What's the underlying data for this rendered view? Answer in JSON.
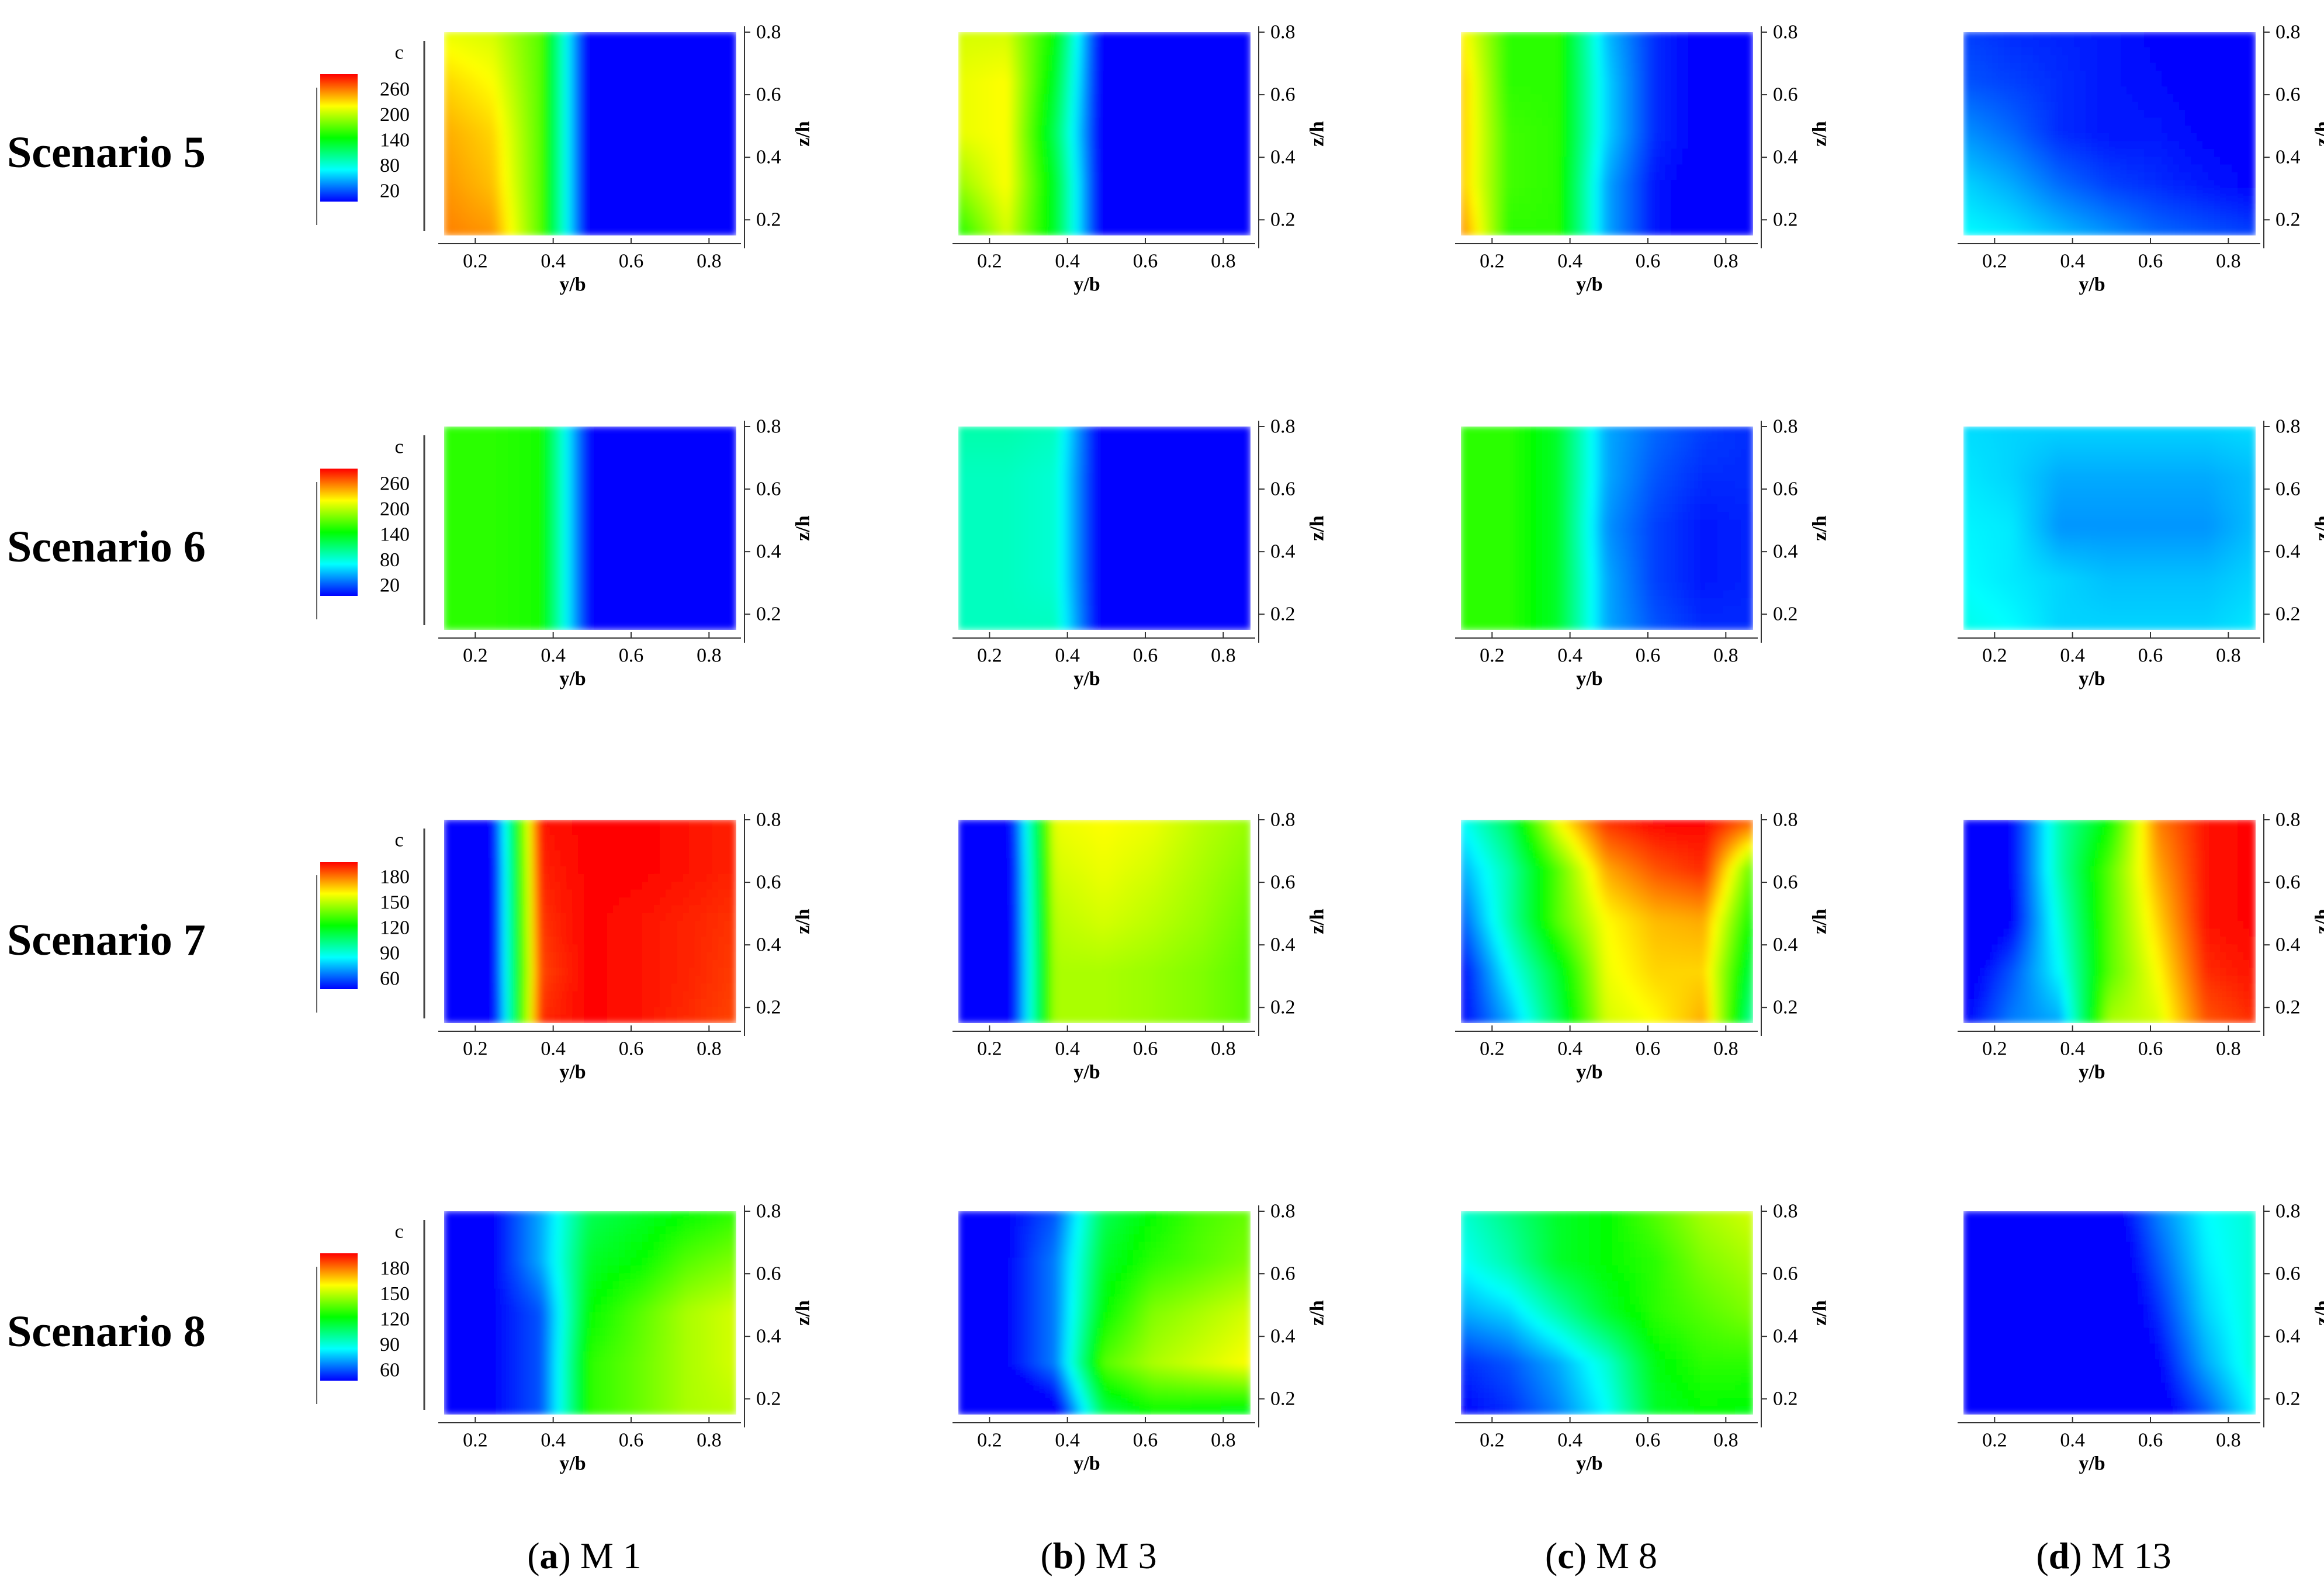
{
  "figure": {
    "row_labels": [
      "Scenario 5",
      "Scenario 6",
      "Scenario 7",
      "Scenario 8"
    ],
    "columns": [
      {
        "letter": "a",
        "rest": " M 1"
      },
      {
        "letter": "b",
        "rest": " M 3"
      },
      {
        "letter": "c",
        "rest": " M 8"
      },
      {
        "letter": "d",
        "rest": " M 13"
      }
    ],
    "legends": [
      {
        "title": "c",
        "ticks": [
          "260",
          "200",
          "140",
          "80",
          "20"
        ]
      },
      {
        "title": "c",
        "ticks": [
          "260",
          "200",
          "140",
          "80",
          "20"
        ]
      },
      {
        "title": "c",
        "ticks": [
          "180",
          "150",
          "120",
          "90",
          "60"
        ]
      },
      {
        "title": "c",
        "ticks": [
          "180",
          "150",
          "120",
          "90",
          "60"
        ]
      }
    ]
  },
  "chart_data": {
    "type": "heatmap",
    "xlabel": "y/b",
    "ylabel": "z/h",
    "colorbar_label": "c",
    "xticks": [
      0.2,
      0.4,
      0.6,
      0.8
    ],
    "yticks": [
      0.2,
      0.4,
      0.6,
      0.8
    ],
    "x": [
      0.12,
      0.25,
      0.38,
      0.5,
      0.62,
      0.75,
      0.87
    ],
    "y": [
      0.15,
      0.3,
      0.45,
      0.6,
      0.8
    ],
    "color_ranges": [
      {
        "scenario": "Scenario 5",
        "min": 20,
        "max": 260
      },
      {
        "scenario": "Scenario 6",
        "min": 20,
        "max": 260
      },
      {
        "scenario": "Scenario 7",
        "min": 60,
        "max": 180
      },
      {
        "scenario": "Scenario 8",
        "min": 60,
        "max": 180
      }
    ],
    "panels": [
      {
        "scenario": "Scenario 5",
        "model": "M 1",
        "z": [
          [
            230,
            225,
            160,
            10,
            10,
            10,
            10
          ],
          [
            225,
            215,
            160,
            10,
            10,
            10,
            10
          ],
          [
            220,
            210,
            160,
            10,
            10,
            10,
            10
          ],
          [
            210,
            200,
            160,
            10,
            10,
            10,
            10
          ],
          [
            195,
            190,
            160,
            10,
            10,
            10,
            10
          ]
        ]
      },
      {
        "scenario": "Scenario 5",
        "model": "M 3",
        "z": [
          [
            145,
            190,
            130,
            10,
            10,
            10,
            10
          ],
          [
            175,
            200,
            130,
            10,
            10,
            10,
            10
          ],
          [
            195,
            200,
            120,
            10,
            10,
            10,
            10
          ],
          [
            195,
            200,
            130,
            10,
            10,
            10,
            10
          ],
          [
            190,
            190,
            140,
            10,
            10,
            10,
            10
          ]
        ]
      },
      {
        "scenario": "Scenario 5",
        "model": "M 8",
        "z": [
          [
            230,
            150,
            150,
            60,
            25,
            15,
            12
          ],
          [
            215,
            155,
            150,
            60,
            25,
            15,
            12
          ],
          [
            215,
            155,
            150,
            70,
            30,
            18,
            12
          ],
          [
            215,
            150,
            150,
            70,
            30,
            18,
            12
          ],
          [
            205,
            150,
            150,
            65,
            30,
            18,
            12
          ]
        ]
      },
      {
        "scenario": "Scenario 5",
        "model": "M 13",
        "z": [
          [
            80,
            75,
            65,
            55,
            45,
            40,
            35
          ],
          [
            70,
            60,
            45,
            35,
            30,
            25,
            20
          ],
          [
            55,
            45,
            30,
            25,
            25,
            20,
            18
          ],
          [
            40,
            35,
            30,
            25,
            22,
            18,
            15
          ],
          [
            35,
            30,
            28,
            25,
            20,
            18,
            15
          ]
        ]
      },
      {
        "scenario": "Scenario 6",
        "model": "M 1",
        "z": [
          [
            150,
            150,
            145,
            20,
            18,
            18,
            16
          ],
          [
            150,
            150,
            145,
            20,
            18,
            16,
            16
          ],
          [
            150,
            150,
            145,
            20,
            18,
            16,
            16
          ],
          [
            150,
            150,
            145,
            20,
            18,
            16,
            16
          ],
          [
            150,
            150,
            145,
            20,
            18,
            16,
            16
          ]
        ]
      },
      {
        "scenario": "Scenario 6",
        "model": "M 3",
        "z": [
          [
            95,
            95,
            95,
            10,
            10,
            10,
            10
          ],
          [
            95,
            95,
            90,
            10,
            10,
            10,
            10
          ],
          [
            95,
            95,
            90,
            10,
            10,
            10,
            10
          ],
          [
            95,
            95,
            90,
            10,
            10,
            10,
            10
          ],
          [
            100,
            100,
            95,
            10,
            10,
            10,
            10
          ]
        ]
      },
      {
        "scenario": "Scenario 6",
        "model": "M 8",
        "z": [
          [
            150,
            150,
            130,
            60,
            40,
            30,
            30
          ],
          [
            150,
            150,
            130,
            60,
            35,
            25,
            28
          ],
          [
            150,
            150,
            130,
            55,
            35,
            25,
            28
          ],
          [
            150,
            150,
            130,
            60,
            40,
            30,
            30
          ],
          [
            150,
            150,
            130,
            60,
            45,
            35,
            30
          ]
        ]
      },
      {
        "scenario": "Scenario 6",
        "model": "M 13",
        "z": [
          [
            85,
            80,
            70,
            70,
            70,
            70,
            75
          ],
          [
            80,
            75,
            70,
            65,
            65,
            65,
            70
          ],
          [
            78,
            75,
            55,
            55,
            55,
            55,
            65
          ],
          [
            75,
            70,
            60,
            60,
            60,
            60,
            65
          ],
          [
            72,
            70,
            70,
            70,
            70,
            70,
            72
          ]
        ]
      },
      {
        "scenario": "Scenario 7",
        "model": "M 1",
        "z": [
          [
            55,
            55,
            175,
            180,
            178,
            175,
            172
          ],
          [
            55,
            58,
            172,
            180,
            178,
            176,
            173
          ],
          [
            55,
            58,
            174,
            180,
            178,
            176,
            174
          ],
          [
            55,
            58,
            176,
            180,
            180,
            178,
            176
          ],
          [
            55,
            60,
            178,
            180,
            180,
            178,
            176
          ]
        ]
      },
      {
        "scenario": "Scenario 7",
        "model": "M 3",
        "z": [
          [
            50,
            50,
            140,
            140,
            138,
            135,
            130
          ],
          [
            50,
            50,
            140,
            140,
            138,
            135,
            130
          ],
          [
            50,
            50,
            142,
            145,
            142,
            138,
            132
          ],
          [
            50,
            50,
            145,
            148,
            145,
            140,
            135
          ],
          [
            50,
            52,
            148,
            150,
            148,
            142,
            138
          ]
        ]
      },
      {
        "scenario": "Scenario 7",
        "model": "M 8",
        "z": [
          [
            60,
            80,
            110,
            145,
            150,
            160,
            100
          ],
          [
            60,
            90,
            115,
            148,
            155,
            155,
            110
          ],
          [
            70,
            100,
            130,
            150,
            158,
            160,
            120
          ],
          [
            80,
            100,
            130,
            160,
            170,
            175,
            130
          ],
          [
            90,
            110,
            150,
            175,
            180,
            180,
            170
          ]
        ]
      },
      {
        "scenario": "Scenario 7",
        "model": "M 13",
        "z": [
          [
            60,
            75,
            80,
            140,
            145,
            170,
            175
          ],
          [
            55,
            70,
            90,
            130,
            150,
            175,
            178
          ],
          [
            50,
            60,
            95,
            130,
            155,
            178,
            180
          ],
          [
            45,
            60,
            100,
            130,
            160,
            178,
            180
          ],
          [
            50,
            60,
            100,
            120,
            165,
            178,
            180
          ]
        ]
      },
      {
        "scenario": "Scenario 8",
        "model": "M 1",
        "z": [
          [
            60,
            60,
            70,
            125,
            132,
            140,
            142
          ],
          [
            60,
            60,
            70,
            125,
            132,
            140,
            145
          ],
          [
            60,
            60,
            70,
            120,
            130,
            140,
            145
          ],
          [
            60,
            60,
            80,
            115,
            120,
            130,
            135
          ],
          [
            60,
            60,
            80,
            110,
            115,
            120,
            125
          ]
        ]
      },
      {
        "scenario": "Scenario 8",
        "model": "M 3",
        "z": [
          [
            45,
            45,
            55,
            110,
            120,
            118,
            115
          ],
          [
            60,
            60,
            75,
            130,
            140,
            145,
            150
          ],
          [
            60,
            60,
            75,
            120,
            135,
            140,
            145
          ],
          [
            60,
            60,
            75,
            115,
            125,
            130,
            135
          ],
          [
            60,
            60,
            70,
            110,
            120,
            128,
            132
          ]
        ]
      },
      {
        "scenario": "Scenario 8",
        "model": "M 8",
        "z": [
          [
            60,
            65,
            75,
            90,
            115,
            120,
            118
          ],
          [
            65,
            70,
            80,
            95,
            118,
            125,
            125
          ],
          [
            80,
            85,
            100,
            115,
            125,
            130,
            135
          ],
          [
            90,
            100,
            115,
            120,
            125,
            135,
            140
          ],
          [
            95,
            105,
            115,
            120,
            130,
            140,
            145
          ]
        ]
      },
      {
        "scenario": "Scenario 8",
        "model": "M 13",
        "z": [
          [
            45,
            45,
            45,
            48,
            55,
            70,
            90
          ],
          [
            45,
            45,
            45,
            50,
            60,
            80,
            95
          ],
          [
            45,
            45,
            45,
            50,
            65,
            85,
            95
          ],
          [
            45,
            45,
            45,
            52,
            70,
            88,
            95
          ],
          [
            45,
            45,
            48,
            55,
            75,
            90,
            95
          ]
        ]
      }
    ]
  }
}
